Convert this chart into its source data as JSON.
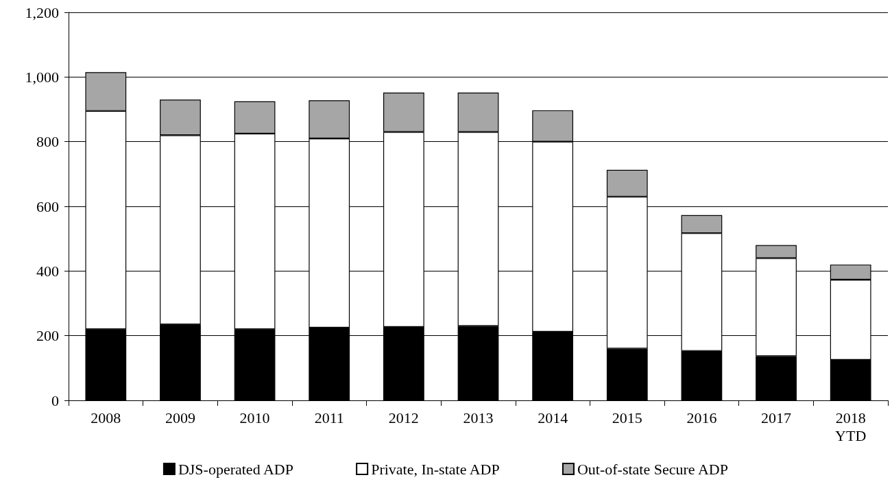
{
  "chart_data": {
    "type": "bar",
    "stacked": true,
    "categories": [
      "2008",
      "2009",
      "2010",
      "2011",
      "2012",
      "2013",
      "2014",
      "2015",
      "2016",
      "2017",
      "2018\nYTD"
    ],
    "series": [
      {
        "name": "DJS-operated ADP",
        "color": "#000000",
        "values": [
          220,
          235,
          220,
          225,
          227,
          230,
          212,
          160,
          153,
          137,
          125
        ]
      },
      {
        "name": "Private, In-state ADP",
        "color": "#ffffff",
        "values": [
          675,
          585,
          605,
          585,
          603,
          600,
          588,
          470,
          364,
          303,
          248
        ]
      },
      {
        "name": "Out-of-state Secure ADP",
        "color": "#a6a6a6",
        "values": [
          120,
          110,
          100,
          118,
          122,
          122,
          97,
          83,
          56,
          40,
          47
        ]
      }
    ],
    "ylim": [
      0,
      1200
    ],
    "yticks": [
      {
        "value": 0,
        "label": "0"
      },
      {
        "value": 200,
        "label": "200"
      },
      {
        "value": 400,
        "label": "400"
      },
      {
        "value": 600,
        "label": "600"
      },
      {
        "value": 800,
        "label": "800"
      },
      {
        "value": 1000,
        "label": "1,000"
      },
      {
        "value": 1200,
        "label": "1,200"
      }
    ],
    "grid": "y",
    "legend": "bottom"
  }
}
